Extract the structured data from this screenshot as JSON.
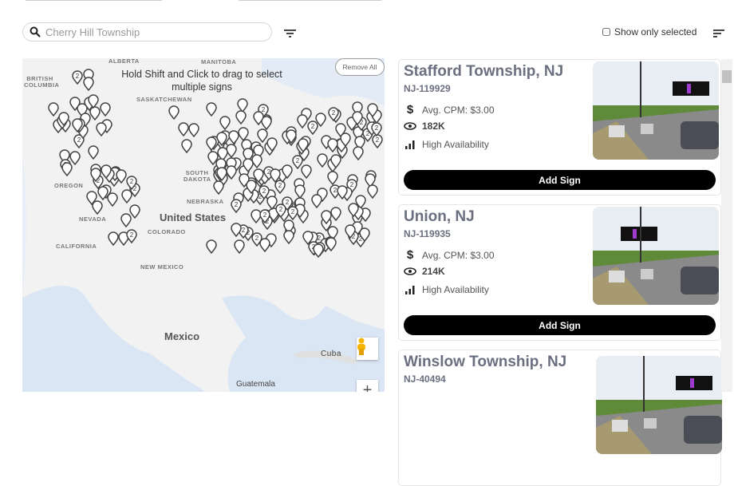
{
  "search": {
    "placeholder": "Cherry Hill Township",
    "icon": "search-icon"
  },
  "filter_icon": "filter-icon",
  "show_only_selected": {
    "label": "Show only selected",
    "checked": false
  },
  "sort_icon": "sort-icon",
  "map": {
    "hint": "Hold Shift and Click to drag to select multiple signs",
    "remove_all": "Remove All",
    "labels": {
      "alberta": "ALBERTA",
      "manitoba": "MANITOBA",
      "bc": "BRITISH COLUMBIA",
      "sask": "SASKATCHEWAN",
      "oregon": "OREGON",
      "nevada": "NEVADA",
      "california": "CALIFORNIA",
      "sdakota": "SOUTH DAKOTA",
      "nebraska": "NEBRASKA",
      "us": "United States",
      "colorado": "COLORADO",
      "newmexico": "NEW MEXICO",
      "mexico": "Mexico",
      "cuba": "Cuba",
      "guatemala": "Guatemala"
    },
    "cluster_label": "2",
    "zoom_in": "+"
  },
  "cards": [
    {
      "title": "Stafford Township, NJ",
      "code": "NJ-119929",
      "cpm": "Avg. CPM: $3.00",
      "impressions": "182K",
      "availability": "High Availability",
      "button": "Add Sign"
    },
    {
      "title": "Union, NJ",
      "code": "NJ-119935",
      "cpm": "Avg. CPM: $3.00",
      "impressions": "214K",
      "availability": "High Availability",
      "button": "Add Sign"
    },
    {
      "title": "Winslow Township, NJ",
      "code": "NJ-40494"
    }
  ]
}
